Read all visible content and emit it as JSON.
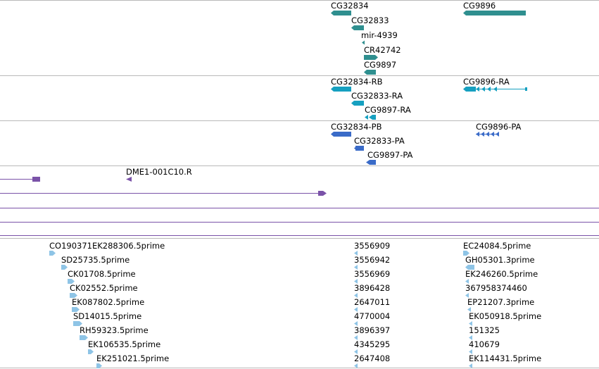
{
  "colors": {
    "gene_teal": "#2f8f8f",
    "transcript_cyan": "#16a0c0",
    "cds_blue": "#3a6bc8",
    "alignment_purple": "#7a52a8",
    "est_lightblue": "#8ec4e6",
    "separator": "#b9b9b9"
  },
  "gene_track": {
    "labels": [
      "CG32834",
      "CG32833",
      "mir-4939",
      "CR42742",
      "CG9897",
      "CG9896"
    ]
  },
  "transcript_track": {
    "labels": [
      "CG32834-RB",
      "CG32833-RA",
      "CG9897-RA",
      "CG9896-RA"
    ]
  },
  "cds_track": {
    "labels": [
      "CG32834-PB",
      "CG32833-PA",
      "CG9897-PA",
      "CG9896-PA"
    ]
  },
  "alignment_track": {
    "labels": [
      "DME1-001C10.R"
    ]
  },
  "est_track": {
    "col1": [
      "CO190371EK288306.5prime",
      "SD25735.5prime",
      "CK01708.5prime",
      "CK02552.5prime",
      "EK087802.5prime",
      "SD14015.5prime",
      "RH59323.5prime",
      "EK106535.5prime",
      "EK251021.5prime"
    ],
    "col2": [
      "3556909",
      "3556942",
      "3556969",
      "3896428",
      "2647011",
      "4770004",
      "3896397",
      "4345295",
      "2647408"
    ],
    "col3": [
      "EC24084.5prime",
      "GH05301.3prime",
      "EK246260.5prime",
      "367958374460",
      "EP21207.3prime",
      "EK050918.5prime",
      "151325",
      "410679",
      "EK114431.5prime"
    ]
  }
}
